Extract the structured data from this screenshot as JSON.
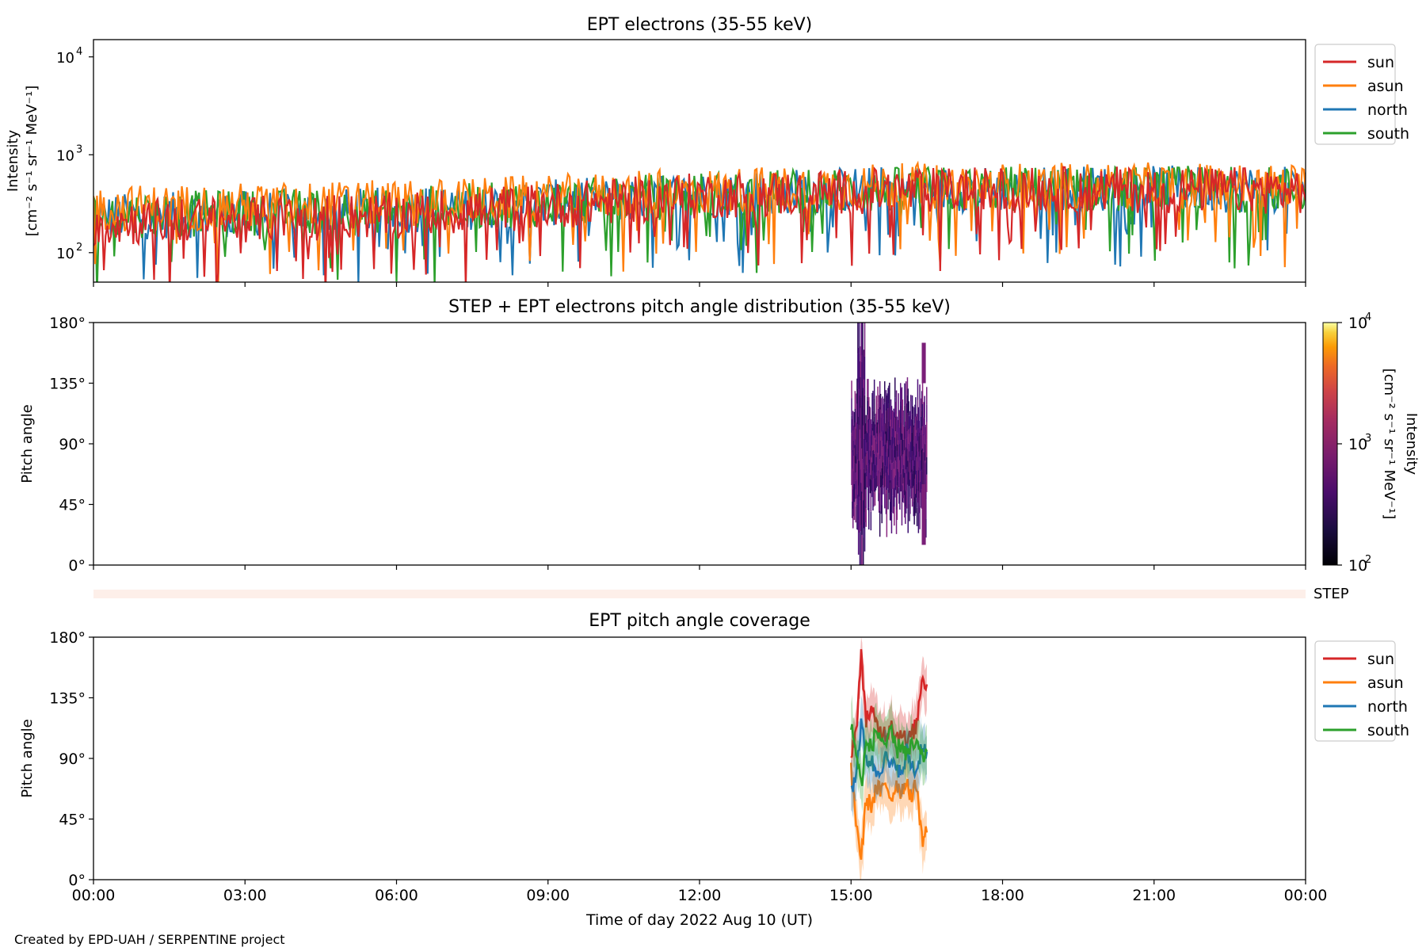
{
  "footer": {
    "credit": "Created by EPD-UAH / SERPENTINE project"
  },
  "colors": {
    "sun": "#d62728",
    "asun": "#ff7f0e",
    "north": "#1f77b4",
    "south": "#2ca02c",
    "step_band": "#fdefe9"
  },
  "chart_data": [
    {
      "type": "line",
      "title": "EPT electrons (35-55 keV)",
      "ylabel": "Intensity",
      "ylabel_units": "[cm⁻² s⁻¹ sr⁻¹ MeV⁻¹]",
      "yscale": "log",
      "ylim": [
        50,
        15000
      ],
      "yticks": [
        {
          "value": 100,
          "base": "10",
          "exp": "2"
        },
        {
          "value": 1000,
          "base": "10",
          "exp": "3"
        },
        {
          "value": 10000,
          "base": "10",
          "exp": "4"
        }
      ],
      "xlim_hours": [
        0,
        24
      ],
      "legend_position": "outside-right",
      "legend": [
        "sun",
        "asun",
        "north",
        "south"
      ],
      "series": [
        {
          "name": "sun",
          "color": "#d62728",
          "time_hours": [
            0,
            3,
            6,
            9,
            12,
            15,
            18,
            21,
            24
          ],
          "median_values": [
            200,
            220,
            240,
            300,
            380,
            420,
            440,
            440,
            430
          ]
        },
        {
          "name": "asun",
          "color": "#ff7f0e",
          "time_hours": [
            0,
            3,
            6,
            9,
            12,
            15,
            18,
            21,
            24
          ],
          "median_values": [
            280,
            300,
            320,
            360,
            420,
            470,
            480,
            480,
            470
          ]
        },
        {
          "name": "north",
          "color": "#1f77b4",
          "time_hours": [
            0,
            3,
            6,
            9,
            12,
            15,
            18,
            21,
            24
          ],
          "median_values": [
            230,
            250,
            270,
            320,
            390,
            440,
            450,
            450,
            440
          ]
        },
        {
          "name": "south",
          "color": "#2ca02c",
          "time_hours": [
            0,
            3,
            6,
            9,
            12,
            15,
            18,
            21,
            24
          ],
          "median_values": [
            240,
            255,
            275,
            320,
            390,
            430,
            445,
            445,
            440
          ]
        }
      ]
    },
    {
      "type": "heatmap",
      "title": "STEP + EPT electrons pitch angle distribution (35-55 keV)",
      "ylabel": "Pitch angle",
      "ylim": [
        0,
        180
      ],
      "yticks": [
        "0°",
        "45°",
        "90°",
        "135°",
        "180°"
      ],
      "xlim_hours": [
        0,
        24
      ],
      "data_time_range_hours": [
        15.0,
        16.5
      ],
      "pitch_angle_range_deg": [
        0,
        180
      ],
      "typical_intensity": 400,
      "colorbar": {
        "label": "Intensity",
        "units": "[cm⁻² s⁻¹ sr⁻¹ MeV⁻¹]",
        "scale": "log",
        "range": [
          100,
          10000
        ],
        "ticks": [
          {
            "base": "10",
            "exp": "2"
          },
          {
            "base": "10",
            "exp": "3"
          },
          {
            "base": "10",
            "exp": "4"
          }
        ],
        "colormap": "inferno"
      },
      "step_label": "STEP"
    },
    {
      "type": "line",
      "title": "EPT pitch angle coverage",
      "ylabel": "Pitch angle",
      "xlabel": "Time of day 2022 Aug 10 (UT)",
      "ylim": [
        0,
        180
      ],
      "yticks": [
        "0°",
        "45°",
        "90°",
        "135°",
        "180°"
      ],
      "xlim_hours": [
        0,
        24
      ],
      "xticks": [
        "00:00",
        "03:00",
        "06:00",
        "09:00",
        "12:00",
        "15:00",
        "18:00",
        "21:00",
        "00:00"
      ],
      "legend_position": "outside-right",
      "legend": [
        "sun",
        "asun",
        "north",
        "south"
      ],
      "series": [
        {
          "name": "sun",
          "color": "#d62728",
          "time_hours": [
            15.0,
            15.1,
            15.2,
            15.3,
            15.4,
            15.5,
            15.6,
            15.7,
            15.8,
            15.9,
            16.0,
            16.1,
            16.2,
            16.3,
            16.4,
            16.5
          ],
          "values": [
            95,
            110,
            165,
            120,
            125,
            115,
            110,
            108,
            118,
            105,
            112,
            100,
            108,
            115,
            150,
            145
          ]
        },
        {
          "name": "asun",
          "color": "#ff7f0e",
          "time_hours": [
            15.0,
            15.1,
            15.2,
            15.3,
            15.4,
            15.5,
            15.6,
            15.7,
            15.8,
            15.9,
            16.0,
            16.1,
            16.2,
            16.3,
            16.4,
            16.5
          ],
          "values": [
            80,
            45,
            15,
            60,
            55,
            68,
            65,
            70,
            60,
            72,
            65,
            75,
            60,
            72,
            30,
            35
          ]
        },
        {
          "name": "north",
          "color": "#1f77b4",
          "time_hours": [
            15.0,
            15.1,
            15.2,
            15.3,
            15.4,
            15.5,
            15.6,
            15.7,
            15.8,
            15.9,
            16.0,
            16.1,
            16.2,
            16.3,
            16.4,
            16.5
          ],
          "values": [
            65,
            80,
            115,
            90,
            88,
            80,
            85,
            90,
            82,
            88,
            75,
            95,
            85,
            80,
            100,
            95
          ]
        },
        {
          "name": "south",
          "color": "#2ca02c",
          "time_hours": [
            15.0,
            15.1,
            15.2,
            15.3,
            15.4,
            15.5,
            15.6,
            15.7,
            15.8,
            15.9,
            16.0,
            16.1,
            16.2,
            16.3,
            16.4,
            16.5
          ],
          "values": [
            115,
            95,
            70,
            100,
            98,
            110,
            105,
            100,
            108,
            95,
            102,
            92,
            98,
            100,
            90,
            95
          ]
        }
      ]
    }
  ]
}
